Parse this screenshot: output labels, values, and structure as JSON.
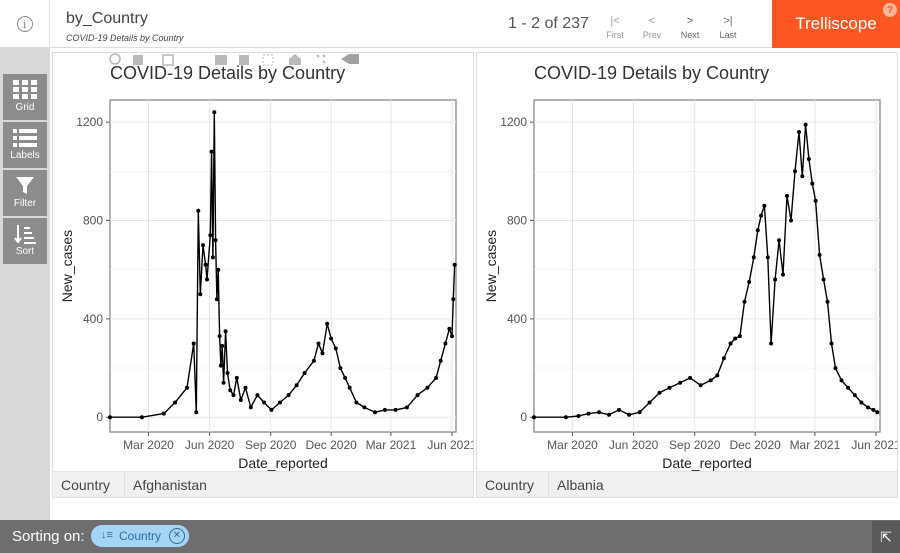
{
  "header": {
    "title": "by_Country",
    "subtitle": "COVID-19 Details by Country",
    "pager_label": "1 - 2 of 237",
    "nav": [
      {
        "glyph": "|<",
        "label": "First",
        "enabled": false
      },
      {
        "glyph": "<",
        "label": "Prev",
        "enabled": false
      },
      {
        "glyph": ">",
        "label": "Next",
        "enabled": true
      },
      {
        "glyph": ">|",
        "label": "Last",
        "enabled": true
      }
    ],
    "brand": "Trelliscope",
    "help": "?",
    "info": "i",
    "brand_color": "#ff5722"
  },
  "sidebar": {
    "items": [
      {
        "label": "Grid",
        "icon": "grid-icon"
      },
      {
        "label": "Labels",
        "icon": "list-icon"
      },
      {
        "label": "Filter",
        "icon": "filter-icon"
      },
      {
        "label": "Sort",
        "icon": "sort-icon"
      }
    ]
  },
  "panels": [
    {
      "cog_name": "Country",
      "cog_value": "Afghanistan"
    },
    {
      "cog_name": "Country",
      "cog_value": "Albania"
    }
  ],
  "footer": {
    "label": "Sorting on:",
    "chip_label": "Country",
    "chip_icon": "sort-az-icon",
    "expand_icon": "expand-icon"
  },
  "chart_data": [
    {
      "type": "line",
      "title": "COVID-19 Details by Country",
      "xlabel": "Date_reported",
      "ylabel": "New_cases",
      "x_ticks": [
        "Mar 2020",
        "Jun 2020",
        "Sep 2020",
        "Dec 2020",
        "Mar 2021",
        "Jun 2021"
      ],
      "x_tick_dates": [
        "2020-03-01",
        "2020-06-01",
        "2020-09-01",
        "2020-12-01",
        "2021-03-01",
        "2021-06-01"
      ],
      "y_ticks": [
        0,
        400,
        800,
        1200
      ],
      "xlim": [
        "2020-01-03",
        "2021-06-07"
      ],
      "ylim": [
        -60,
        1290
      ],
      "grid": true,
      "x": [
        "2020-01-03",
        "2020-02-20",
        "2020-03-24",
        "2020-04-10",
        "2020-04-28",
        "2020-05-08",
        "2020-05-12",
        "2020-05-15",
        "2020-05-18",
        "2020-05-22",
        "2020-05-26",
        "2020-05-28",
        "2020-06-02",
        "2020-06-04",
        "2020-06-06",
        "2020-06-08",
        "2020-06-10",
        "2020-06-12",
        "2020-06-14",
        "2020-06-16",
        "2020-06-18",
        "2020-06-20",
        "2020-06-22",
        "2020-06-25",
        "2020-06-28",
        "2020-07-02",
        "2020-07-07",
        "2020-07-12",
        "2020-07-18",
        "2020-07-25",
        "2020-08-02",
        "2020-08-12",
        "2020-08-22",
        "2020-09-02",
        "2020-09-15",
        "2020-09-28",
        "2020-10-10",
        "2020-10-22",
        "2020-11-05",
        "2020-11-12",
        "2020-11-18",
        "2020-11-25",
        "2020-12-01",
        "2020-12-08",
        "2020-12-15",
        "2020-12-22",
        "2020-12-29",
        "2021-01-08",
        "2021-01-20",
        "2021-02-05",
        "2021-02-20",
        "2021-03-08",
        "2021-03-25",
        "2021-04-10",
        "2021-04-25",
        "2021-05-08",
        "2021-05-15",
        "2021-05-22",
        "2021-05-28",
        "2021-06-01",
        "2021-06-03",
        "2021-06-05"
      ],
      "series": [
        {
          "values": [
            0,
            0,
            15,
            60,
            120,
            300,
            20,
            840,
            500,
            700,
            620,
            560,
            740,
            1080,
            650,
            1240,
            720,
            480,
            600,
            330,
            210,
            290,
            140,
            350,
            180,
            110,
            90,
            160,
            70,
            120,
            40,
            90,
            60,
            30,
            60,
            90,
            130,
            180,
            230,
            300,
            260,
            380,
            320,
            280,
            200,
            160,
            120,
            60,
            40,
            20,
            30,
            30,
            40,
            90,
            120,
            160,
            230,
            300,
            360,
            330,
            480,
            620
          ]
        }
      ]
    },
    {
      "type": "line",
      "title": "COVID-19 Details by Country",
      "xlabel": "Date_reported",
      "ylabel": "New_cases",
      "x_ticks": [
        "Mar 2020",
        "Jun 2020",
        "Sep 2020",
        "Dec 2020",
        "Mar 2021",
        "Jun 2021"
      ],
      "x_tick_dates": [
        "2020-03-01",
        "2020-06-01",
        "2020-09-01",
        "2020-12-01",
        "2021-03-01",
        "2021-06-01"
      ],
      "y_ticks": [
        0,
        400,
        800,
        1200
      ],
      "xlim": [
        "2020-01-03",
        "2021-06-07"
      ],
      "ylim": [
        -60,
        1290
      ],
      "grid": true,
      "x": [
        "2020-01-03",
        "2020-02-20",
        "2020-03-10",
        "2020-03-25",
        "2020-04-10",
        "2020-04-25",
        "2020-05-10",
        "2020-05-25",
        "2020-06-10",
        "2020-06-25",
        "2020-07-10",
        "2020-07-25",
        "2020-08-10",
        "2020-08-25",
        "2020-09-10",
        "2020-09-25",
        "2020-10-05",
        "2020-10-15",
        "2020-10-25",
        "2020-11-01",
        "2020-11-08",
        "2020-11-15",
        "2020-11-22",
        "2020-11-29",
        "2020-12-05",
        "2020-12-10",
        "2020-12-15",
        "2020-12-20",
        "2020-12-25",
        "2020-12-31",
        "2021-01-06",
        "2021-01-12",
        "2021-01-18",
        "2021-01-24",
        "2021-01-30",
        "2021-02-05",
        "2021-02-10",
        "2021-02-15",
        "2021-02-20",
        "2021-02-25",
        "2021-03-02",
        "2021-03-08",
        "2021-03-14",
        "2021-03-20",
        "2021-03-26",
        "2021-04-01",
        "2021-04-10",
        "2021-04-20",
        "2021-04-30",
        "2021-05-10",
        "2021-05-20",
        "2021-05-28",
        "2021-06-03"
      ],
      "series": [
        {
          "values": [
            0,
            0,
            5,
            15,
            20,
            10,
            30,
            10,
            20,
            60,
            100,
            120,
            140,
            160,
            130,
            150,
            170,
            240,
            300,
            320,
            330,
            470,
            550,
            650,
            760,
            820,
            860,
            650,
            300,
            560,
            720,
            580,
            900,
            800,
            1000,
            1160,
            980,
            1190,
            1050,
            950,
            880,
            660,
            560,
            470,
            300,
            200,
            150,
            120,
            90,
            60,
            40,
            30,
            20
          ]
        }
      ]
    }
  ]
}
